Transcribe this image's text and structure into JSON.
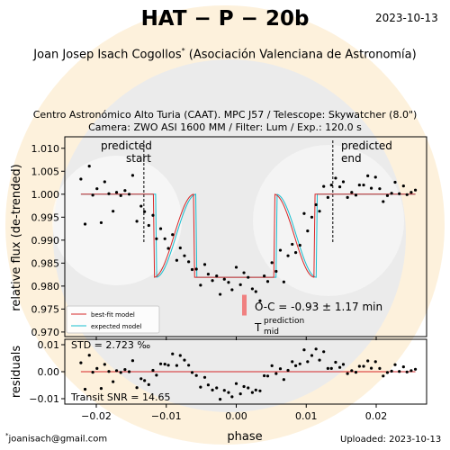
{
  "header": {
    "title": "HAT − P − 20b",
    "date": "2023-10-13",
    "observer": "Joan Josep Isach Cogollos",
    "observer_mark": "*",
    "affiliation": "(Asociación Valenciana de Astronomía)",
    "observatory_line": "Centro Astronómico Alto Turia (CAAT). MPC J57 / Telescope: Skywatcher (8.0\")",
    "camera_line": "Camera: ZWO ASI 1600 MM / Filter: Lum / Exp.: 120.0 s"
  },
  "footer": {
    "email_mark": "*",
    "email": "joanisach@gmail.com",
    "uploaded": "Uploaded: 2023-10-13"
  },
  "annotations": {
    "predicted_start_1": "predicted",
    "predicted_start_2": "start",
    "predicted_end_1": "predicted",
    "predicted_end_2": "end",
    "oc": "O-C = -0.93 ± 1.17 min",
    "tmid_main": "T",
    "tmid_sup": "prediction",
    "tmid_sub": "mid",
    "std": "STD = 2.723 ‰",
    "snr": "Transit SNR = 14.65"
  },
  "colors": {
    "bestfit": "#d62728",
    "expected": "#17becf",
    "points": "#000000",
    "oc_bar": "#f08080",
    "watermark": "#fce7c8",
    "background_disc": "#ececec"
  },
  "chart_data": {
    "type": "scatter",
    "xlabel": "phase",
    "ylabel": "relative flux (de-trended)",
    "ylabel_residuals": "residuals",
    "xlim": [
      -0.0245,
      0.0272
    ],
    "ylim": [
      0.969,
      1.0125
    ],
    "ylim_residuals": [
      -0.012,
      0.012
    ],
    "xticks": [
      -0.02,
      -0.01,
      0.0,
      0.01,
      0.02
    ],
    "xtick_labels": [
      "−0.02",
      "−0.01",
      "0.00",
      "0.01",
      "0.02"
    ],
    "yticks": [
      0.97,
      0.975,
      0.98,
      0.985,
      0.99,
      0.995,
      1.0,
      1.005,
      1.01
    ],
    "ytick_labels": [
      "0.970",
      "0.975",
      "0.980",
      "0.985",
      "0.990",
      "0.995",
      "1.000",
      "1.005",
      "1.010"
    ],
    "yticks_residuals": [
      -0.01,
      0.0,
      0.01
    ],
    "ytick_labels_residuals": [
      "−0.01",
      "0.00",
      "0.01"
    ],
    "predicted_start": -0.0132,
    "predicted_end": 0.0138,
    "legend": [
      "best-fit model",
      "expected model"
    ],
    "legend_position": "lower left",
    "model": {
      "bestfit": {
        "baseline": 1.0,
        "depth": 0.0181,
        "center": -0.0003,
        "half_width": 0.0115,
        "ingress": 0.0058
      },
      "expected": {
        "baseline": 1.0,
        "depth": 0.0181,
        "center": 0.0,
        "half_width": 0.0115,
        "ingress": 0.0058
      }
    },
    "points": {
      "x": [
        -0.0222,
        -0.0216,
        -0.021,
        -0.0205,
        -0.0199,
        -0.0193,
        -0.0188,
        -0.0182,
        -0.0176,
        -0.0171,
        -0.0165,
        -0.0159,
        -0.0153,
        -0.0148,
        -0.0142,
        -0.0136,
        -0.0131,
        -0.0125,
        -0.0119,
        -0.0114,
        -0.0108,
        -0.0102,
        -0.0097,
        -0.0091,
        -0.0085,
        -0.008,
        -0.0074,
        -0.0068,
        -0.0063,
        -0.0057,
        -0.0051,
        -0.0045,
        -0.004,
        -0.0034,
        -0.0028,
        -0.0023,
        -0.0017,
        -0.0011,
        -0.0006,
        0.0,
        0.0006,
        0.0011,
        0.0017,
        0.0023,
        0.0028,
        0.0034,
        0.004,
        0.0045,
        0.0051,
        0.0057,
        0.0063,
        0.0068,
        0.0074,
        0.008,
        0.0085,
        0.0091,
        0.0097,
        0.0102,
        0.0108,
        0.0114,
        0.0119,
        0.0125,
        0.0131,
        0.0136,
        0.0142,
        0.0148,
        0.0153,
        0.0159,
        0.0165,
        0.0171,
        0.0176,
        0.0182,
        0.0188,
        0.0193,
        0.0199,
        0.0205,
        0.021,
        0.0216,
        0.0222,
        0.0227,
        0.0233,
        0.0239,
        0.0244,
        0.025,
        0.0256
      ],
      "y": [
        1.0033,
        0.9935,
        1.0061,
        0.9998,
        1.0012,
        0.9938,
        1.0027,
        1.0001,
        0.9963,
        1.0004,
        0.9997,
        1.0008,
        1.0,
        1.0041,
        0.9941,
        0.9974,
        0.9962,
        0.9932,
        0.9954,
        0.9903,
        0.9925,
        0.9903,
        0.9882,
        0.9912,
        0.9856,
        0.9883,
        0.9866,
        0.9853,
        0.9836,
        0.9837,
        0.9802,
        0.9847,
        0.9826,
        0.9812,
        0.9822,
        0.9782,
        0.9815,
        0.9808,
        0.9792,
        0.9841,
        0.9803,
        0.9829,
        0.9819,
        0.9794,
        0.9788,
        0.9768,
        0.9822,
        0.981,
        0.9851,
        0.9832,
        0.9878,
        0.9809,
        0.9866,
        0.9891,
        0.9873,
        0.9889,
        0.9958,
        0.992,
        0.995,
        0.9977,
        0.9963,
        1.0017,
        0.9993,
        1.002,
        1.0035,
        1.0016,
        1.0027,
        0.9993,
        1.0004,
        0.9998,
        1.002,
        1.002,
        1.004,
        1.0013,
        1.0037,
        1.0012,
        0.9984,
        0.9997,
        1.0002,
        1.0026,
        1.0001,
        1.0018,
        0.9999,
        1.0004,
        1.0009
      ]
    },
    "residuals": {
      "x": [
        -0.0222,
        -0.0216,
        -0.021,
        -0.0205,
        -0.0199,
        -0.0193,
        -0.0188,
        -0.0182,
        -0.0176,
        -0.0171,
        -0.0165,
        -0.0159,
        -0.0153,
        -0.0148,
        -0.0142,
        -0.0136,
        -0.0131,
        -0.0125,
        -0.0119,
        -0.0114,
        -0.0108,
        -0.0102,
        -0.0097,
        -0.0091,
        -0.0085,
        -0.008,
        -0.0074,
        -0.0068,
        -0.0063,
        -0.0057,
        -0.0051,
        -0.0045,
        -0.004,
        -0.0034,
        -0.0028,
        -0.0023,
        -0.0017,
        -0.0011,
        -0.0006,
        0.0,
        0.0006,
        0.0011,
        0.0017,
        0.0023,
        0.0028,
        0.0034,
        0.004,
        0.0045,
        0.0051,
        0.0057,
        0.0063,
        0.0068,
        0.0074,
        0.008,
        0.0085,
        0.0091,
        0.0097,
        0.0102,
        0.0108,
        0.0114,
        0.0119,
        0.0125,
        0.0131,
        0.0136,
        0.0142,
        0.0148,
        0.0153,
        0.0159,
        0.0165,
        0.0171,
        0.0176,
        0.0182,
        0.0188,
        0.0193,
        0.0199,
        0.0205,
        0.021,
        0.0216,
        0.0222,
        0.0227,
        0.0233,
        0.0239,
        0.0244,
        0.025,
        0.0256
      ],
      "y": [
        0.0033,
        -0.0065,
        0.0061,
        -0.0002,
        0.0012,
        -0.0062,
        0.0027,
        0.0001,
        -0.0037,
        0.0004,
        -0.0003,
        0.0008,
        0.0,
        0.0041,
        -0.0059,
        -0.0026,
        -0.0033,
        -0.0048,
        0.0005,
        -0.0013,
        0.0029,
        0.0028,
        0.0024,
        0.0066,
        0.0023,
        0.006,
        0.0043,
        0.0024,
        -0.0003,
        -0.0014,
        -0.0057,
        -0.0021,
        -0.0049,
        -0.0068,
        -0.006,
        -0.0102,
        -0.0069,
        -0.0077,
        -0.0093,
        -0.0044,
        -0.0082,
        -0.0055,
        -0.006,
        -0.0077,
        -0.0068,
        -0.0071,
        -0.0015,
        -0.0016,
        0.0022,
        -0.0007,
        0.0011,
        -0.0029,
        0.0005,
        0.0037,
        0.0022,
        0.0029,
        0.0081,
        0.0037,
        0.006,
        0.0084,
        0.0043,
        0.0074,
        0.0012,
        0.0012,
        0.0035,
        0.0016,
        0.0027,
        -0.0007,
        0.0004,
        -0.0002,
        0.002,
        0.002,
        0.004,
        0.0013,
        0.0037,
        0.0012,
        -0.0016,
        -0.0003,
        0.0002,
        0.0026,
        0.0001,
        0.0018,
        -0.0001,
        0.0004,
        0.0009
      ]
    }
  }
}
